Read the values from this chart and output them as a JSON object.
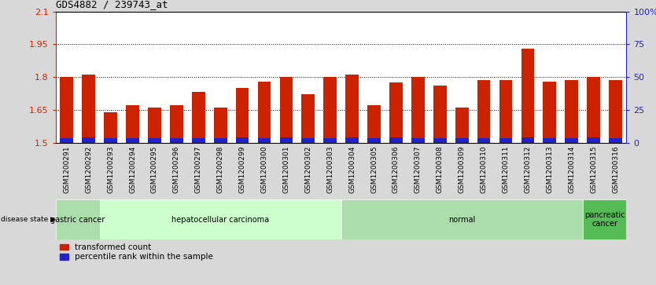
{
  "title": "GDS4882 / 239743_at",
  "samples": [
    "GSM1200291",
    "GSM1200292",
    "GSM1200293",
    "GSM1200294",
    "GSM1200295",
    "GSM1200296",
    "GSM1200297",
    "GSM1200298",
    "GSM1200299",
    "GSM1200300",
    "GSM1200301",
    "GSM1200302",
    "GSM1200303",
    "GSM1200304",
    "GSM1200305",
    "GSM1200306",
    "GSM1200307",
    "GSM1200308",
    "GSM1200309",
    "GSM1200310",
    "GSM1200311",
    "GSM1200312",
    "GSM1200313",
    "GSM1200314",
    "GSM1200315",
    "GSM1200316"
  ],
  "transformed_count": [
    1.8,
    1.81,
    1.64,
    1.67,
    1.66,
    1.67,
    1.73,
    1.66,
    1.75,
    1.78,
    1.8,
    1.72,
    1.8,
    1.81,
    1.67,
    1.775,
    1.8,
    1.76,
    1.66,
    1.785,
    1.785,
    1.93,
    1.78,
    1.785,
    1.8,
    1.785
  ],
  "percentile_rank": [
    3,
    4,
    3,
    3,
    3,
    3,
    3,
    3,
    4,
    3,
    4,
    3,
    3,
    4,
    3,
    4,
    3,
    3,
    3,
    3,
    3,
    4,
    3,
    3,
    4,
    3
  ],
  "disease_groups": [
    {
      "label": "gastric cancer",
      "start": 0,
      "end": 2,
      "color": "#aaddaa"
    },
    {
      "label": "hepatocellular carcinoma",
      "start": 2,
      "end": 13,
      "color": "#ccffcc"
    },
    {
      "label": "normal",
      "start": 13,
      "end": 24,
      "color": "#aaddaa"
    },
    {
      "label": "pancreatic\ncancer",
      "start": 24,
      "end": 26,
      "color": "#55bb55"
    }
  ],
  "ylim_left": [
    1.5,
    2.1
  ],
  "yticks_left": [
    1.5,
    1.65,
    1.8,
    1.95,
    2.1
  ],
  "ylim_right": [
    0,
    100
  ],
  "yticks_right": [
    0,
    25,
    50,
    75,
    100
  ],
  "bar_color": "#cc2200",
  "percentile_color": "#2222cc",
  "bar_width": 0.6,
  "background_color": "#d8d8d8",
  "plot_bg_color": "#ffffff",
  "ylabel_left_color": "#cc2200",
  "ylabel_right_color": "#2222cc",
  "xtick_bg_color": "#c8c8c8"
}
